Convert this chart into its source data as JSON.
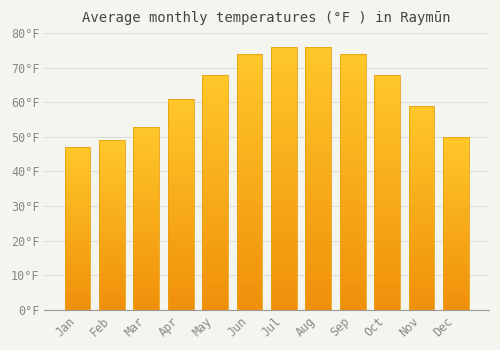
{
  "title": "Average monthly temperatures (°F ) in Raymūn",
  "months": [
    "Jan",
    "Feb",
    "Mar",
    "Apr",
    "May",
    "Jun",
    "Jul",
    "Aug",
    "Sep",
    "Oct",
    "Nov",
    "Dec"
  ],
  "values": [
    47,
    49,
    53,
    61,
    68,
    74,
    76,
    76,
    74,
    68,
    59,
    50
  ],
  "bar_color_top": "#FFC82A",
  "bar_color_bottom": "#F0900A",
  "bar_edge_color": "#E8A010",
  "background_color": "#F5F5F0",
  "grid_color": "#DDDDDD",
  "ylim": [
    0,
    80
  ],
  "yticks": [
    0,
    10,
    20,
    30,
    40,
    50,
    60,
    70,
    80
  ],
  "title_fontsize": 10,
  "tick_fontsize": 8.5,
  "tick_label_color": "#888888",
  "title_color": "#444444"
}
